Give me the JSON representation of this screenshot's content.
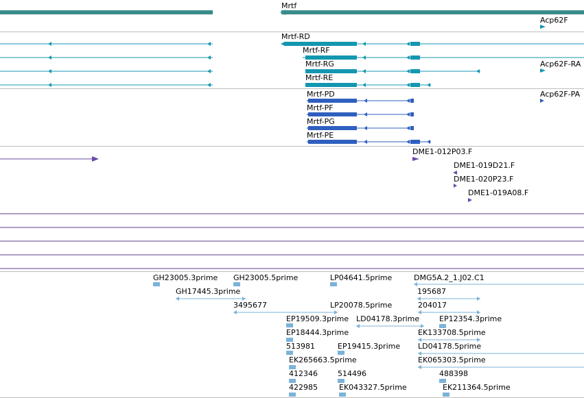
{
  "colors": {
    "gene": "#3a8c8c",
    "transcript_teal": "#1397b0",
    "transcript_blue": "#2f5fbf",
    "clone_purple": "#6a4aa8",
    "track_line": "#5a3f8a",
    "est_blue": "#7bb3d8",
    "divider": "#bdbdbd"
  },
  "genes": [
    {
      "label": ""
    },
    {
      "label": "Mrtf"
    },
    {
      "label": "Acp62F"
    }
  ],
  "transcripts_teal": [
    {
      "label": "Mrtf-RD"
    },
    {
      "label": "Mrtf-RF"
    },
    {
      "label": "Mrtf-RG"
    },
    {
      "label": "Acp62F-RA"
    },
    {
      "label": "Mrtf-RE"
    }
  ],
  "transcripts_blue": [
    {
      "label": "Mrtf-PD"
    },
    {
      "label": "Acp62F-PA"
    },
    {
      "label": "Mrtf-PF"
    },
    {
      "label": "Mrtf-PG"
    },
    {
      "label": "Mrtf-PE"
    }
  ],
  "clones": [
    {
      "label": "DME1-012P03.F"
    },
    {
      "label": "DME1-019D21.F"
    },
    {
      "label": "DME1-020P23.F"
    },
    {
      "label": "DME1-019A08.F"
    }
  ],
  "ests": [
    {
      "label": "GH23005.3prime"
    },
    {
      "label": "GH23005.5prime"
    },
    {
      "label": "LP04641.5prime"
    },
    {
      "label": "DMG5A.2_1.J02.C1"
    },
    {
      "label": "GH17445.3prime"
    },
    {
      "label": "195687"
    },
    {
      "label": "3495677"
    },
    {
      "label": "LP20078.5prime"
    },
    {
      "label": "204017"
    },
    {
      "label": "EP19509.3prime"
    },
    {
      "label": "LD04178.3prime"
    },
    {
      "label": "EP12354.3prime"
    },
    {
      "label": "EP18444.3prime"
    },
    {
      "label": "EK133708.5prime"
    },
    {
      "label": "513981"
    },
    {
      "label": "EP19415.3prime"
    },
    {
      "label": "LD04178.5prime"
    },
    {
      "label": "EK265663.5prime"
    },
    {
      "label": "EK065303.5prime"
    },
    {
      "label": "412346"
    },
    {
      "label": "514496"
    },
    {
      "label": "488398"
    },
    {
      "label": "422985"
    },
    {
      "label": "EK043327.5prime"
    },
    {
      "label": "EK211364.5prime"
    }
  ]
}
